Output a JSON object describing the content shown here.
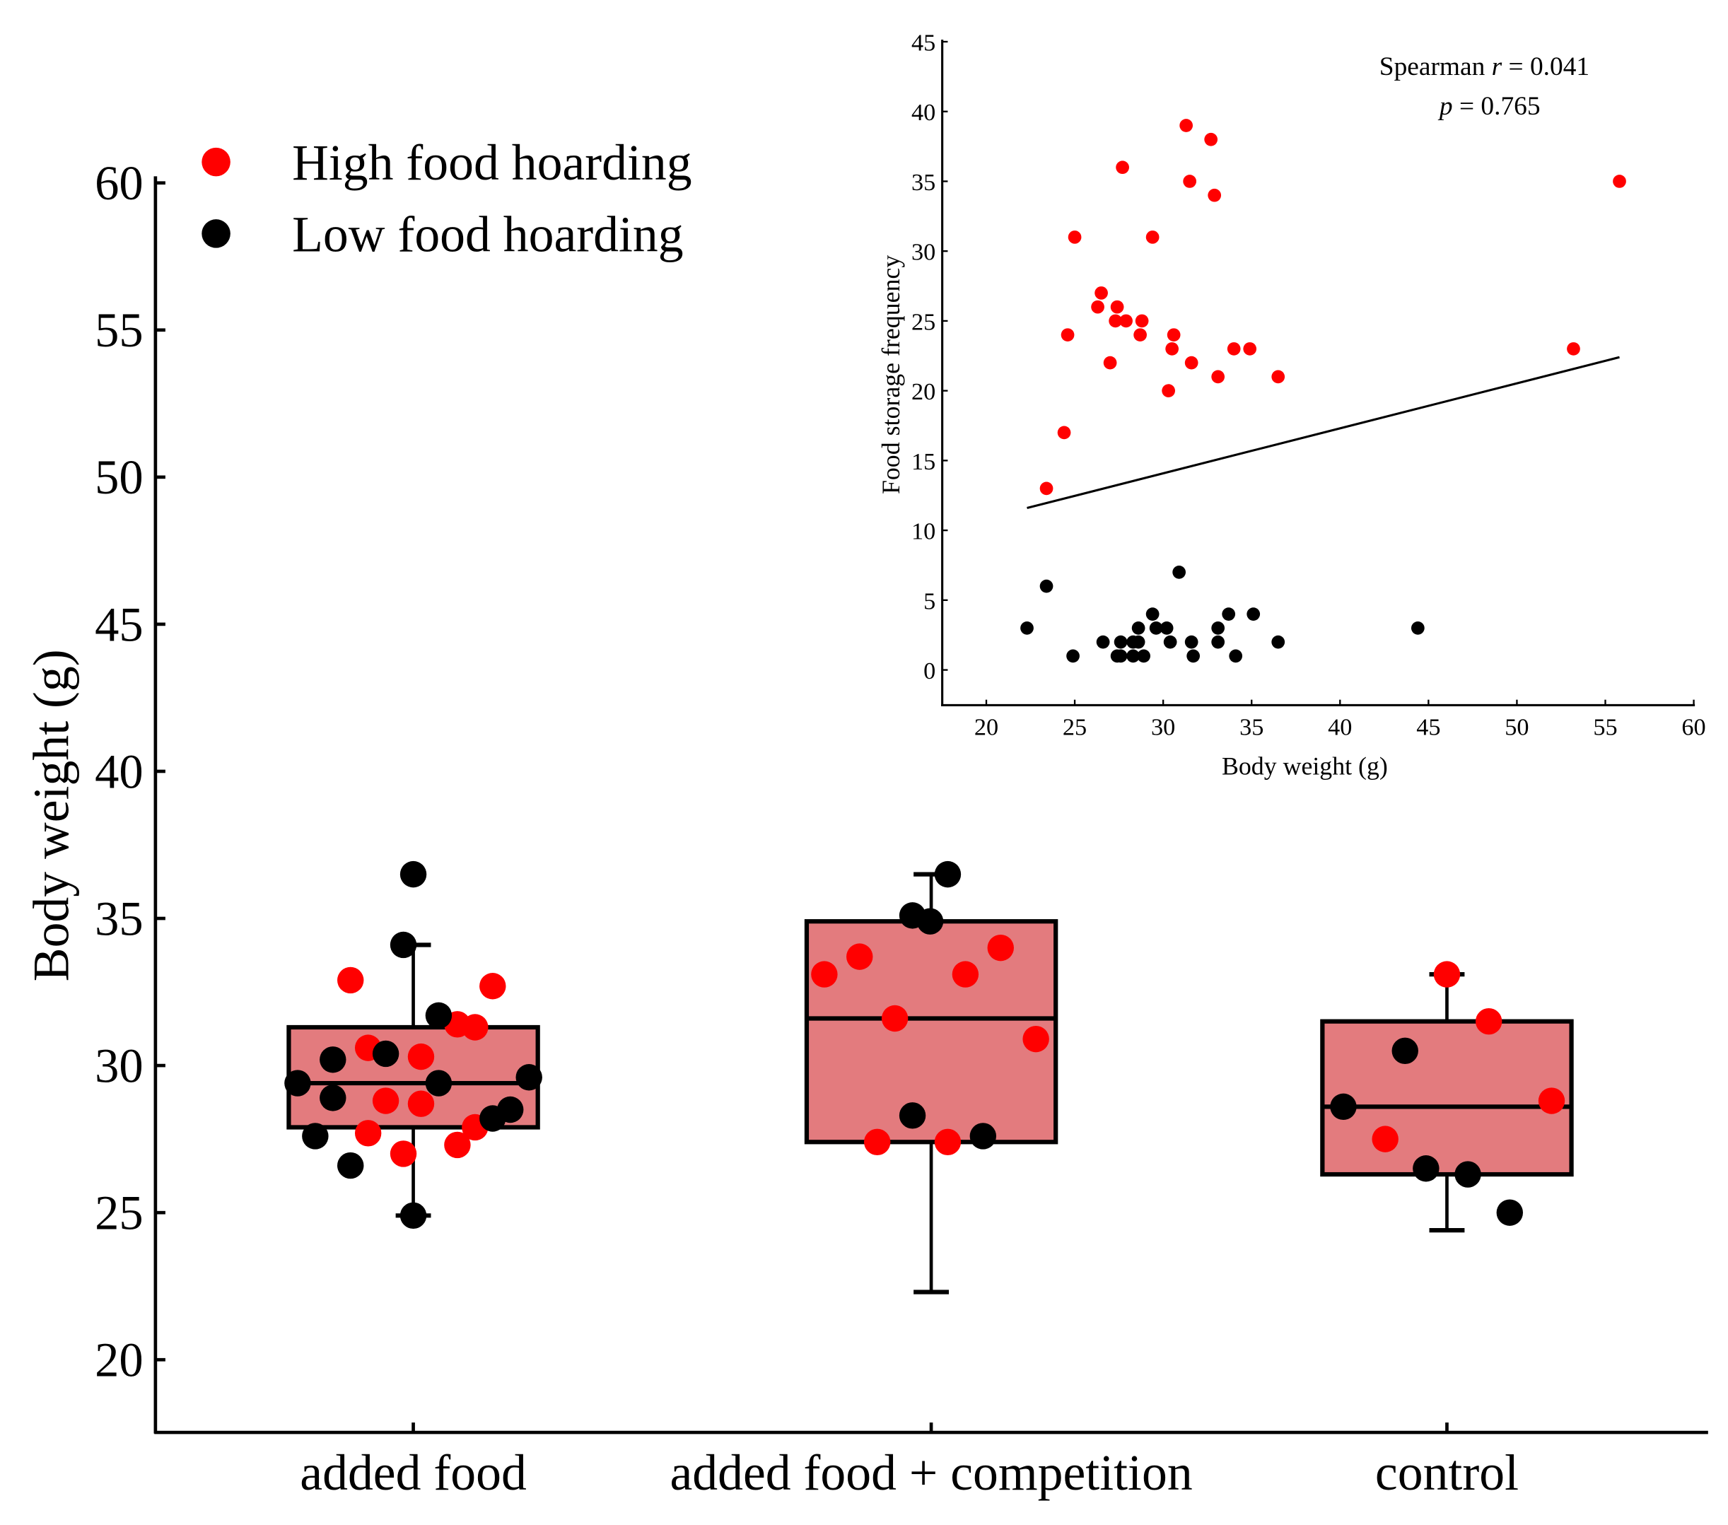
{
  "chart_data": [
    {
      "type": "box",
      "title": "",
      "xlabel": "",
      "ylabel": "Body weight (g)",
      "ylim": [
        17.5,
        60
      ],
      "yticks": [
        20,
        25,
        30,
        35,
        40,
        45,
        50,
        55,
        60
      ],
      "categories": [
        "added food",
        "added food + competition",
        "control"
      ],
      "legend": {
        "placement": "top-left",
        "entries": [
          {
            "label": "High food hoarding",
            "color": "#ff0000"
          },
          {
            "label": "Low food hoarding",
            "color": "#000000"
          }
        ]
      },
      "box_color": "#e37b7e",
      "boxes": [
        {
          "category": "added food",
          "whisker_low": 24.9,
          "q1": 27.9,
          "median": 29.4,
          "q3": 31.3,
          "whisker_high": 34.1
        },
        {
          "category": "added food + competition",
          "whisker_low": 22.3,
          "q1": 27.4,
          "median": 31.6,
          "q3": 34.9,
          "whisker_high": 36.5
        },
        {
          "category": "control",
          "whisker_low": 24.4,
          "q1": 26.3,
          "median": 28.6,
          "q3": 31.5,
          "whisker_high": 33.1
        }
      ],
      "points": [
        {
          "category": 0,
          "group": "high",
          "values": [
            32.9,
            30.6,
            30.3,
            28.8,
            28.7,
            27.7,
            27.0,
            27.3,
            27.9,
            31.4,
            31.3,
            32.7
          ]
        },
        {
          "category": 0,
          "group": "low",
          "values": [
            36.5,
            34.1,
            31.7,
            30.2,
            30.4,
            29.4,
            28.9,
            29.4,
            29.6,
            27.6,
            26.6,
            24.9,
            28.2,
            28.5
          ]
        },
        {
          "category": 1,
          "group": "high",
          "values": [
            33.1,
            33.7,
            31.6,
            33.1,
            34.0,
            30.9,
            27.4,
            27.4
          ]
        },
        {
          "category": 1,
          "group": "low",
          "values": [
            36.5,
            35.1,
            34.9,
            28.3,
            27.6
          ]
        },
        {
          "category": 2,
          "group": "high",
          "values": [
            33.1,
            31.5,
            28.8,
            27.5
          ]
        },
        {
          "category": 2,
          "group": "low",
          "values": [
            30.5,
            28.6,
            26.5,
            26.3,
            25.0
          ]
        }
      ]
    },
    {
      "type": "scatter",
      "title": "",
      "xlabel": "Body weight (g)",
      "ylabel": "Food storage frequency",
      "xlim": [
        17.5,
        60
      ],
      "ylim": [
        -2.5,
        45
      ],
      "xticks": [
        20,
        25,
        30,
        35,
        40,
        45,
        50,
        55,
        60
      ],
      "yticks": [
        0,
        5,
        10,
        15,
        20,
        25,
        30,
        35,
        40,
        45
      ],
      "annotation": {
        "line1_prefix": "Spearman ",
        "line1_var": "r",
        "line1_value": " = 0.041",
        "line2_var": "p",
        "line2_value": " = 0.765"
      },
      "series": [
        {
          "name": "High food hoarding",
          "color": "#ff0000",
          "x": [
            31.3,
            32.7,
            27.7,
            31.5,
            55.8,
            32.9,
            25.0,
            29.4,
            26.5,
            26.3,
            27.4,
            27.3,
            27.9,
            28.8,
            24.6,
            28.7,
            30.6,
            30.5,
            34.0,
            34.9,
            53.2,
            27.0,
            31.6,
            33.1,
            36.5,
            30.3,
            24.4,
            23.4
          ],
          "y": [
            39,
            38,
            36,
            35,
            35,
            34,
            31,
            31,
            27,
            26,
            26,
            25,
            25,
            25,
            24,
            24,
            24,
            23,
            23,
            23,
            23,
            22,
            22,
            21,
            21,
            20,
            17,
            13
          ]
        },
        {
          "name": "Low food hoarding",
          "color": "#000000",
          "x": [
            22.3,
            23.4,
            24.9,
            26.6,
            27.6,
            27.4,
            27.6,
            28.3,
            28.6,
            28.3,
            28.9,
            28.6,
            29.4,
            29.6,
            30.2,
            30.4,
            30.9,
            31.6,
            31.7,
            33.1,
            33.1,
            33.7,
            34.1,
            35.1,
            36.5,
            44.4
          ],
          "y": [
            3,
            6,
            1,
            2,
            2,
            1,
            1,
            2,
            2,
            1,
            1,
            3,
            4,
            3,
            3,
            2,
            7,
            2,
            1,
            3,
            2,
            4,
            1,
            4,
            2,
            3
          ]
        }
      ],
      "fit_line": {
        "x": [
          22.3,
          55.8
        ],
        "y": [
          11.6,
          22.4
        ]
      }
    }
  ]
}
